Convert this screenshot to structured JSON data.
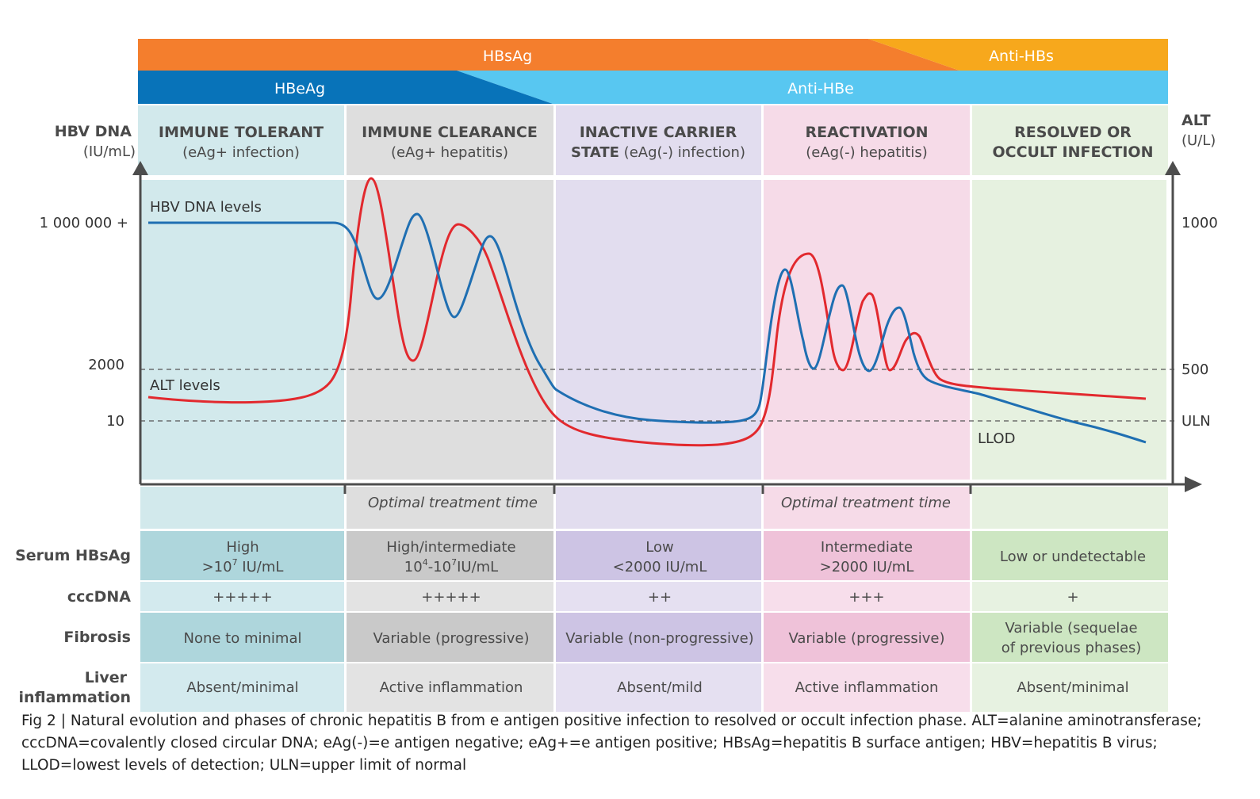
{
  "bands": {
    "hbsag": {
      "label": "HBsAg",
      "color": "#f47e2d"
    },
    "anti_hbs": {
      "label": "Anti-HBs",
      "color": "#f7a81c"
    },
    "hbeag": {
      "label": "HBeAg",
      "color": "#0873b9"
    },
    "anti_hbe": {
      "label": "Anti-HBe",
      "color": "#58c7f1"
    }
  },
  "axes": {
    "left_title": "HBV DNA",
    "left_unit": "(IU/mL)",
    "right_title": "ALT",
    "right_unit": "(U/L)",
    "left_ticks": [
      "1 000 000 +",
      "2000",
      "10"
    ],
    "right_ticks": [
      "1000",
      "500",
      "ULN"
    ]
  },
  "phases": [
    {
      "title1": "IMMUNE TOLERANT",
      "title2": "",
      "sub": "(eAg+ infection)",
      "sub_bold": "",
      "bg": "#d2e9ec",
      "cell_bg": "#aed6dc",
      "cell_bg_light": "#d3eaee"
    },
    {
      "title1": "IMMUNE CLEARANCE",
      "title2": "",
      "sub": "(eAg+ hepatitis)",
      "sub_bold": "",
      "bg": "#dedede",
      "cell_bg": "#c9c9c9",
      "cell_bg_light": "#e3e3e3"
    },
    {
      "title1": "INACTIVE CARRIER",
      "title2": "",
      "sub": " (eAg(-) infection)",
      "sub_bold": "STATE",
      "bg": "#e2ddef",
      "cell_bg": "#cdc4e4",
      "cell_bg_light": "#e5e0f1"
    },
    {
      "title1": "REACTIVATION",
      "title2": "",
      "sub": "(eAg(-) hepatitis)",
      "sub_bold": "",
      "bg": "#f6dbe8",
      "cell_bg": "#efc2d9",
      "cell_bg_light": "#f7deeb"
    },
    {
      "title1": "RESOLVED OR",
      "title2": "OCCULT INFECTION",
      "sub": "",
      "sub_bold": "",
      "bg": "#e6f1e0",
      "cell_bg": "#cde6c2",
      "cell_bg_light": "#e7f2e1"
    }
  ],
  "series": {
    "dna_label": "HBV DNA levels",
    "alt_label": "ALT levels",
    "llod_label": "LLOD",
    "dna_color": "#1f6fb2",
    "alt_color": "#e2292e"
  },
  "optimal": [
    "Optimal treatment time",
    "Optimal treatment time"
  ],
  "rows": {
    "serum_label": "Serum HBsAg",
    "cccdna_label": "cccDNA",
    "fibrosis_label": "Fibrosis",
    "liver_label_1": "Liver",
    "liver_label_2": "inflammation"
  },
  "serum": [
    {
      "line1": "High",
      "pre": ">10",
      "sup1": "7",
      "mid": "",
      "sup2": "",
      "post": " IU/mL"
    },
    {
      "line1": "High/intermediate",
      "pre": "10",
      "sup1": "4",
      "mid": "-10",
      "sup2": "7",
      "post": "IU/mL"
    },
    {
      "line1": "Low",
      "pre": "<2000 IU/mL",
      "sup1": "",
      "mid": "",
      "sup2": "",
      "post": ""
    },
    {
      "line1": "Intermediate",
      "pre": ">2000 IU/mL",
      "sup1": "",
      "mid": "",
      "sup2": "",
      "post": ""
    },
    {
      "line1": "Low or undetectable",
      "pre": "",
      "sup1": "",
      "mid": "",
      "sup2": "",
      "post": ""
    }
  ],
  "cccdna": [
    "+++++",
    "+++++",
    "++",
    "+++",
    "+"
  ],
  "fibrosis": [
    {
      "l1": "None to minimal",
      "l2": ""
    },
    {
      "l1": "Variable (progressive)",
      "l2": ""
    },
    {
      "l1": "Variable (non-progressive)",
      "l2": ""
    },
    {
      "l1": "Variable (progressive)",
      "l2": ""
    },
    {
      "l1": "Variable (sequelae",
      "l2": "of previous phases)"
    }
  ],
  "liver": [
    "Absent/minimal",
    "Active inflammation",
    "Absent/mild",
    "Active inflammation",
    "Absent/minimal"
  ],
  "caption": "Fig 2 | Natural evolution and phases of chronic hepatitis B from e antigen positive infection to resolved or occult infection phase. ALT=alanine aminotransferase; cccDNA=covalently closed circular DNA; eAg(-)=e antigen negative; eAg+=e antigen positive; HBsAg=hepatitis B surface antigen; HBV=hepatitis B virus; LLOD=lowest levels of detection; ULN=upper limit of normal"
}
